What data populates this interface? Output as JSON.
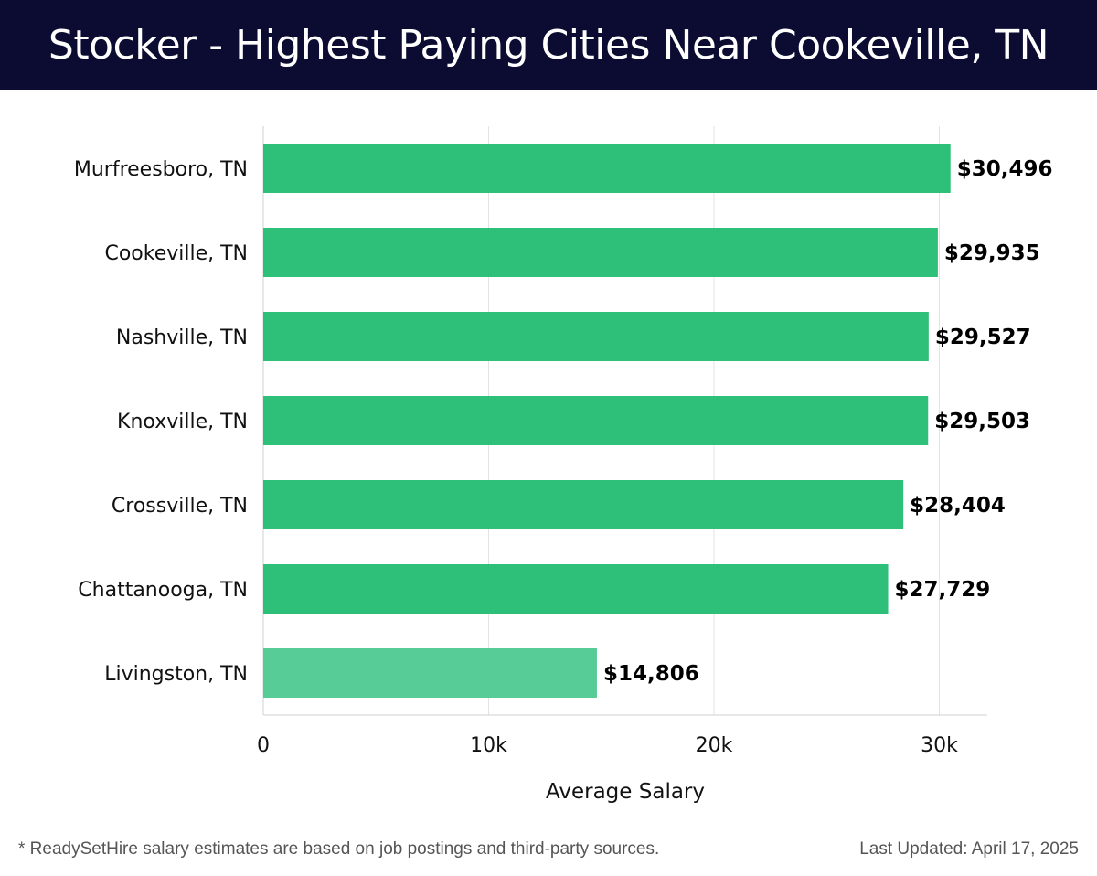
{
  "colors": {
    "header_bg": "#0c0c33",
    "bar": "#2ebf78",
    "bar_low": "#58cc97",
    "grid": "#e3e3e3",
    "text": "#111111"
  },
  "chart_data": {
    "type": "bar",
    "orientation": "horizontal",
    "title": "Stocker - Highest Paying Cities Near Cookeville, TN",
    "xlabel": "Average Salary",
    "ylabel": "",
    "categories": [
      "Murfreesboro, TN",
      "Cookeville, TN",
      "Nashville, TN",
      "Knoxville, TN",
      "Crossville, TN",
      "Chattanooga, TN",
      "Livingston, TN"
    ],
    "values": [
      30496,
      29935,
      29527,
      29503,
      28404,
      27729,
      14806
    ],
    "value_labels": [
      "$30,496",
      "$29,935",
      "$29,527",
      "$29,503",
      "$28,404",
      "$27,729",
      "$14,806"
    ],
    "xlim": [
      0,
      32000
    ],
    "x_ticks": [
      0,
      10000,
      20000,
      30000
    ],
    "x_tick_labels": [
      "0",
      "10k",
      "20k",
      "30k"
    ],
    "grid": true,
    "legend": "none"
  },
  "footer": {
    "note": "* ReadySetHire salary estimates are based on job postings and third-party sources.",
    "updated": "Last Updated: April 17, 2025"
  }
}
